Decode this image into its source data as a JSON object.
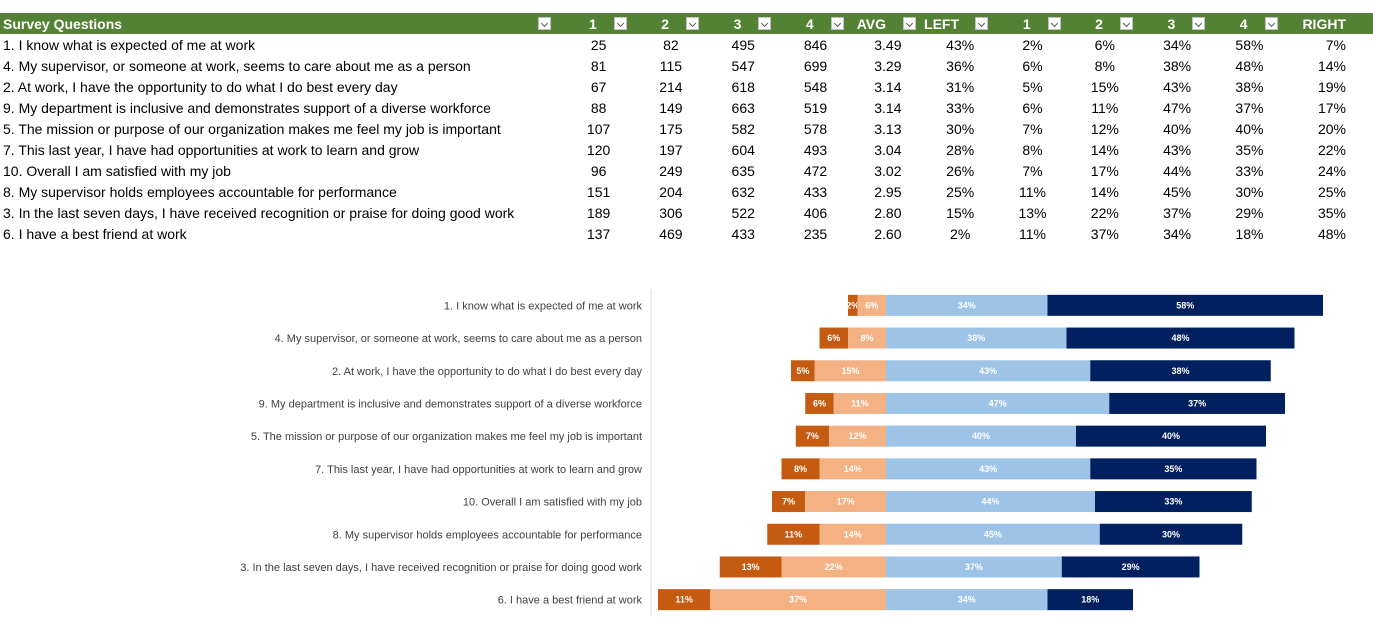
{
  "table": {
    "headers": [
      "Survey Questions",
      "1",
      "2",
      "3",
      "4",
      "AVG",
      "LEFT",
      "1",
      "2",
      "3",
      "4",
      "RIGHT"
    ],
    "rows": [
      [
        "1. I know what is expected of me at work",
        "25",
        "82",
        "495",
        "846",
        "3.49",
        "43%",
        "2%",
        "6%",
        "34%",
        "58%",
        "7%"
      ],
      [
        "4. My supervisor, or someone at work, seems to care about me as a person",
        "81",
        "115",
        "547",
        "699",
        "3.29",
        "36%",
        "6%",
        "8%",
        "38%",
        "48%",
        "14%"
      ],
      [
        "2. At work, I have the opportunity to do what I do best every day",
        "67",
        "214",
        "618",
        "548",
        "3.14",
        "31%",
        "5%",
        "15%",
        "43%",
        "38%",
        "19%"
      ],
      [
        "9. My department is inclusive and demonstrates support of a diverse workforce",
        "88",
        "149",
        "663",
        "519",
        "3.14",
        "33%",
        "6%",
        "11%",
        "47%",
        "37%",
        "17%"
      ],
      [
        "5. The mission or purpose of our organization makes me feel my job is important",
        "107",
        "175",
        "582",
        "578",
        "3.13",
        "30%",
        "7%",
        "12%",
        "40%",
        "40%",
        "20%"
      ],
      [
        "7. This last year, I have had opportunities at work to learn and grow",
        "120",
        "197",
        "604",
        "493",
        "3.04",
        "28%",
        "8%",
        "14%",
        "43%",
        "35%",
        "22%"
      ],
      [
        "10. Overall I am satisfied with my job",
        "96",
        "249",
        "635",
        "472",
        "3.02",
        "26%",
        "7%",
        "17%",
        "44%",
        "33%",
        "24%"
      ],
      [
        "8. My supervisor holds employees accountable for performance",
        "151",
        "204",
        "632",
        "433",
        "2.95",
        "25%",
        "11%",
        "14%",
        "45%",
        "30%",
        "25%"
      ],
      [
        "3. In the last seven days, I have received recognition or praise for doing good work",
        "189",
        "306",
        "522",
        "406",
        "2.80",
        "15%",
        "13%",
        "22%",
        "37%",
        "29%",
        "35%"
      ],
      [
        "6. I have a best friend at work",
        "137",
        "469",
        "433",
        "235",
        "2.60",
        "2%",
        "11%",
        "37%",
        "34%",
        "18%",
        "48%"
      ]
    ]
  },
  "colors": {
    "header_bg": "#548235",
    "header_text": "#ffffff",
    "score1": "#C55A11",
    "score2": "#F4B183",
    "score3": "#9DC3E6",
    "score4": "#002060"
  },
  "chart_data": {
    "type": "bar",
    "orientation": "horizontal",
    "stacked": true,
    "diverging": true,
    "categories": [
      "1. I know what is expected of me at work",
      "4. My supervisor, or someone at work, seems to care about me as a person",
      "2. At work, I have the opportunity to do what I do best every day",
      "9. My department is inclusive and demonstrates support of a diverse workforce",
      "5. The mission or purpose of our organization makes me feel my job is important",
      "7. This last year, I have had opportunities at work to learn and grow",
      "10. Overall I am satisfied with my job",
      "8. My supervisor holds employees accountable for performance",
      "3. In the last seven days, I have received recognition or praise for doing good work",
      "6. I have a best friend at work"
    ],
    "series": [
      {
        "values": [
          2,
          6,
          5,
          6,
          7,
          8,
          7,
          11,
          13,
          11
        ],
        "labels": [
          "2%",
          "6%",
          "5%",
          "6%",
          "7%",
          "8%",
          "7%",
          "11%",
          "13%",
          "11%"
        ]
      },
      {
        "values": [
          6,
          8,
          15,
          11,
          12,
          14,
          17,
          14,
          22,
          37
        ],
        "labels": [
          "6%",
          "8%",
          "15%",
          "11%",
          "12%",
          "14%",
          "17%",
          "14%",
          "22%",
          "37%"
        ]
      },
      {
        "values": [
          34,
          38,
          43,
          47,
          40,
          43,
          44,
          45,
          37,
          34
        ],
        "labels": [
          "34%",
          "38%",
          "43%",
          "47%",
          "40%",
          "43%",
          "44%",
          "45%",
          "37%",
          "34%"
        ]
      },
      {
        "values": [
          58,
          48,
          38,
          37,
          40,
          35,
          33,
          30,
          29,
          18
        ],
        "labels": [
          "58%",
          "48%",
          "38%",
          "37%",
          "40%",
          "35%",
          "33%",
          "30%",
          "29%",
          "18%"
        ]
      }
    ],
    "legend": "none",
    "grid": false
  }
}
